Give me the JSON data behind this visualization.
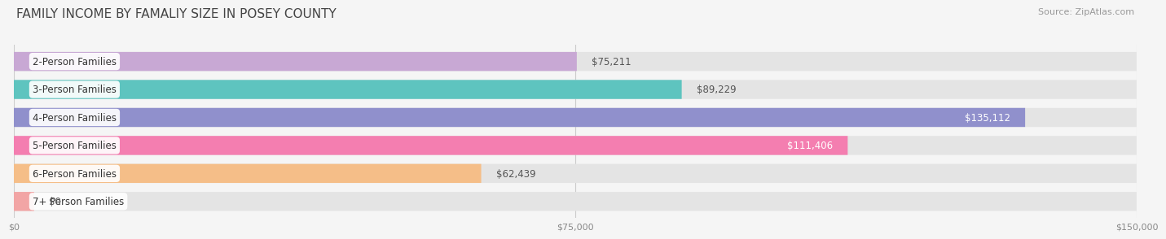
{
  "title": "FAMILY INCOME BY FAMALIY SIZE IN POSEY COUNTY",
  "source": "Source: ZipAtlas.com",
  "categories": [
    "2-Person Families",
    "3-Person Families",
    "4-Person Families",
    "5-Person Families",
    "6-Person Families",
    "7+ Person Families"
  ],
  "values": [
    75211,
    89229,
    135112,
    111406,
    62439,
    0
  ],
  "bar_colors": [
    "#c8a8d4",
    "#5ec4bf",
    "#9090cc",
    "#f47eb0",
    "#f5be88",
    "#f2a5a5"
  ],
  "xlim": [
    0,
    150000
  ],
  "xticks": [
    0,
    75000,
    150000
  ],
  "xtick_labels": [
    "$0",
    "$75,000",
    "$150,000"
  ],
  "background_color": "#f5f5f5",
  "bar_bg_color": "#e4e4e4",
  "title_fontsize": 11,
  "source_fontsize": 8,
  "label_fontsize": 8.5,
  "value_fontsize": 8.5,
  "bar_height": 0.68
}
